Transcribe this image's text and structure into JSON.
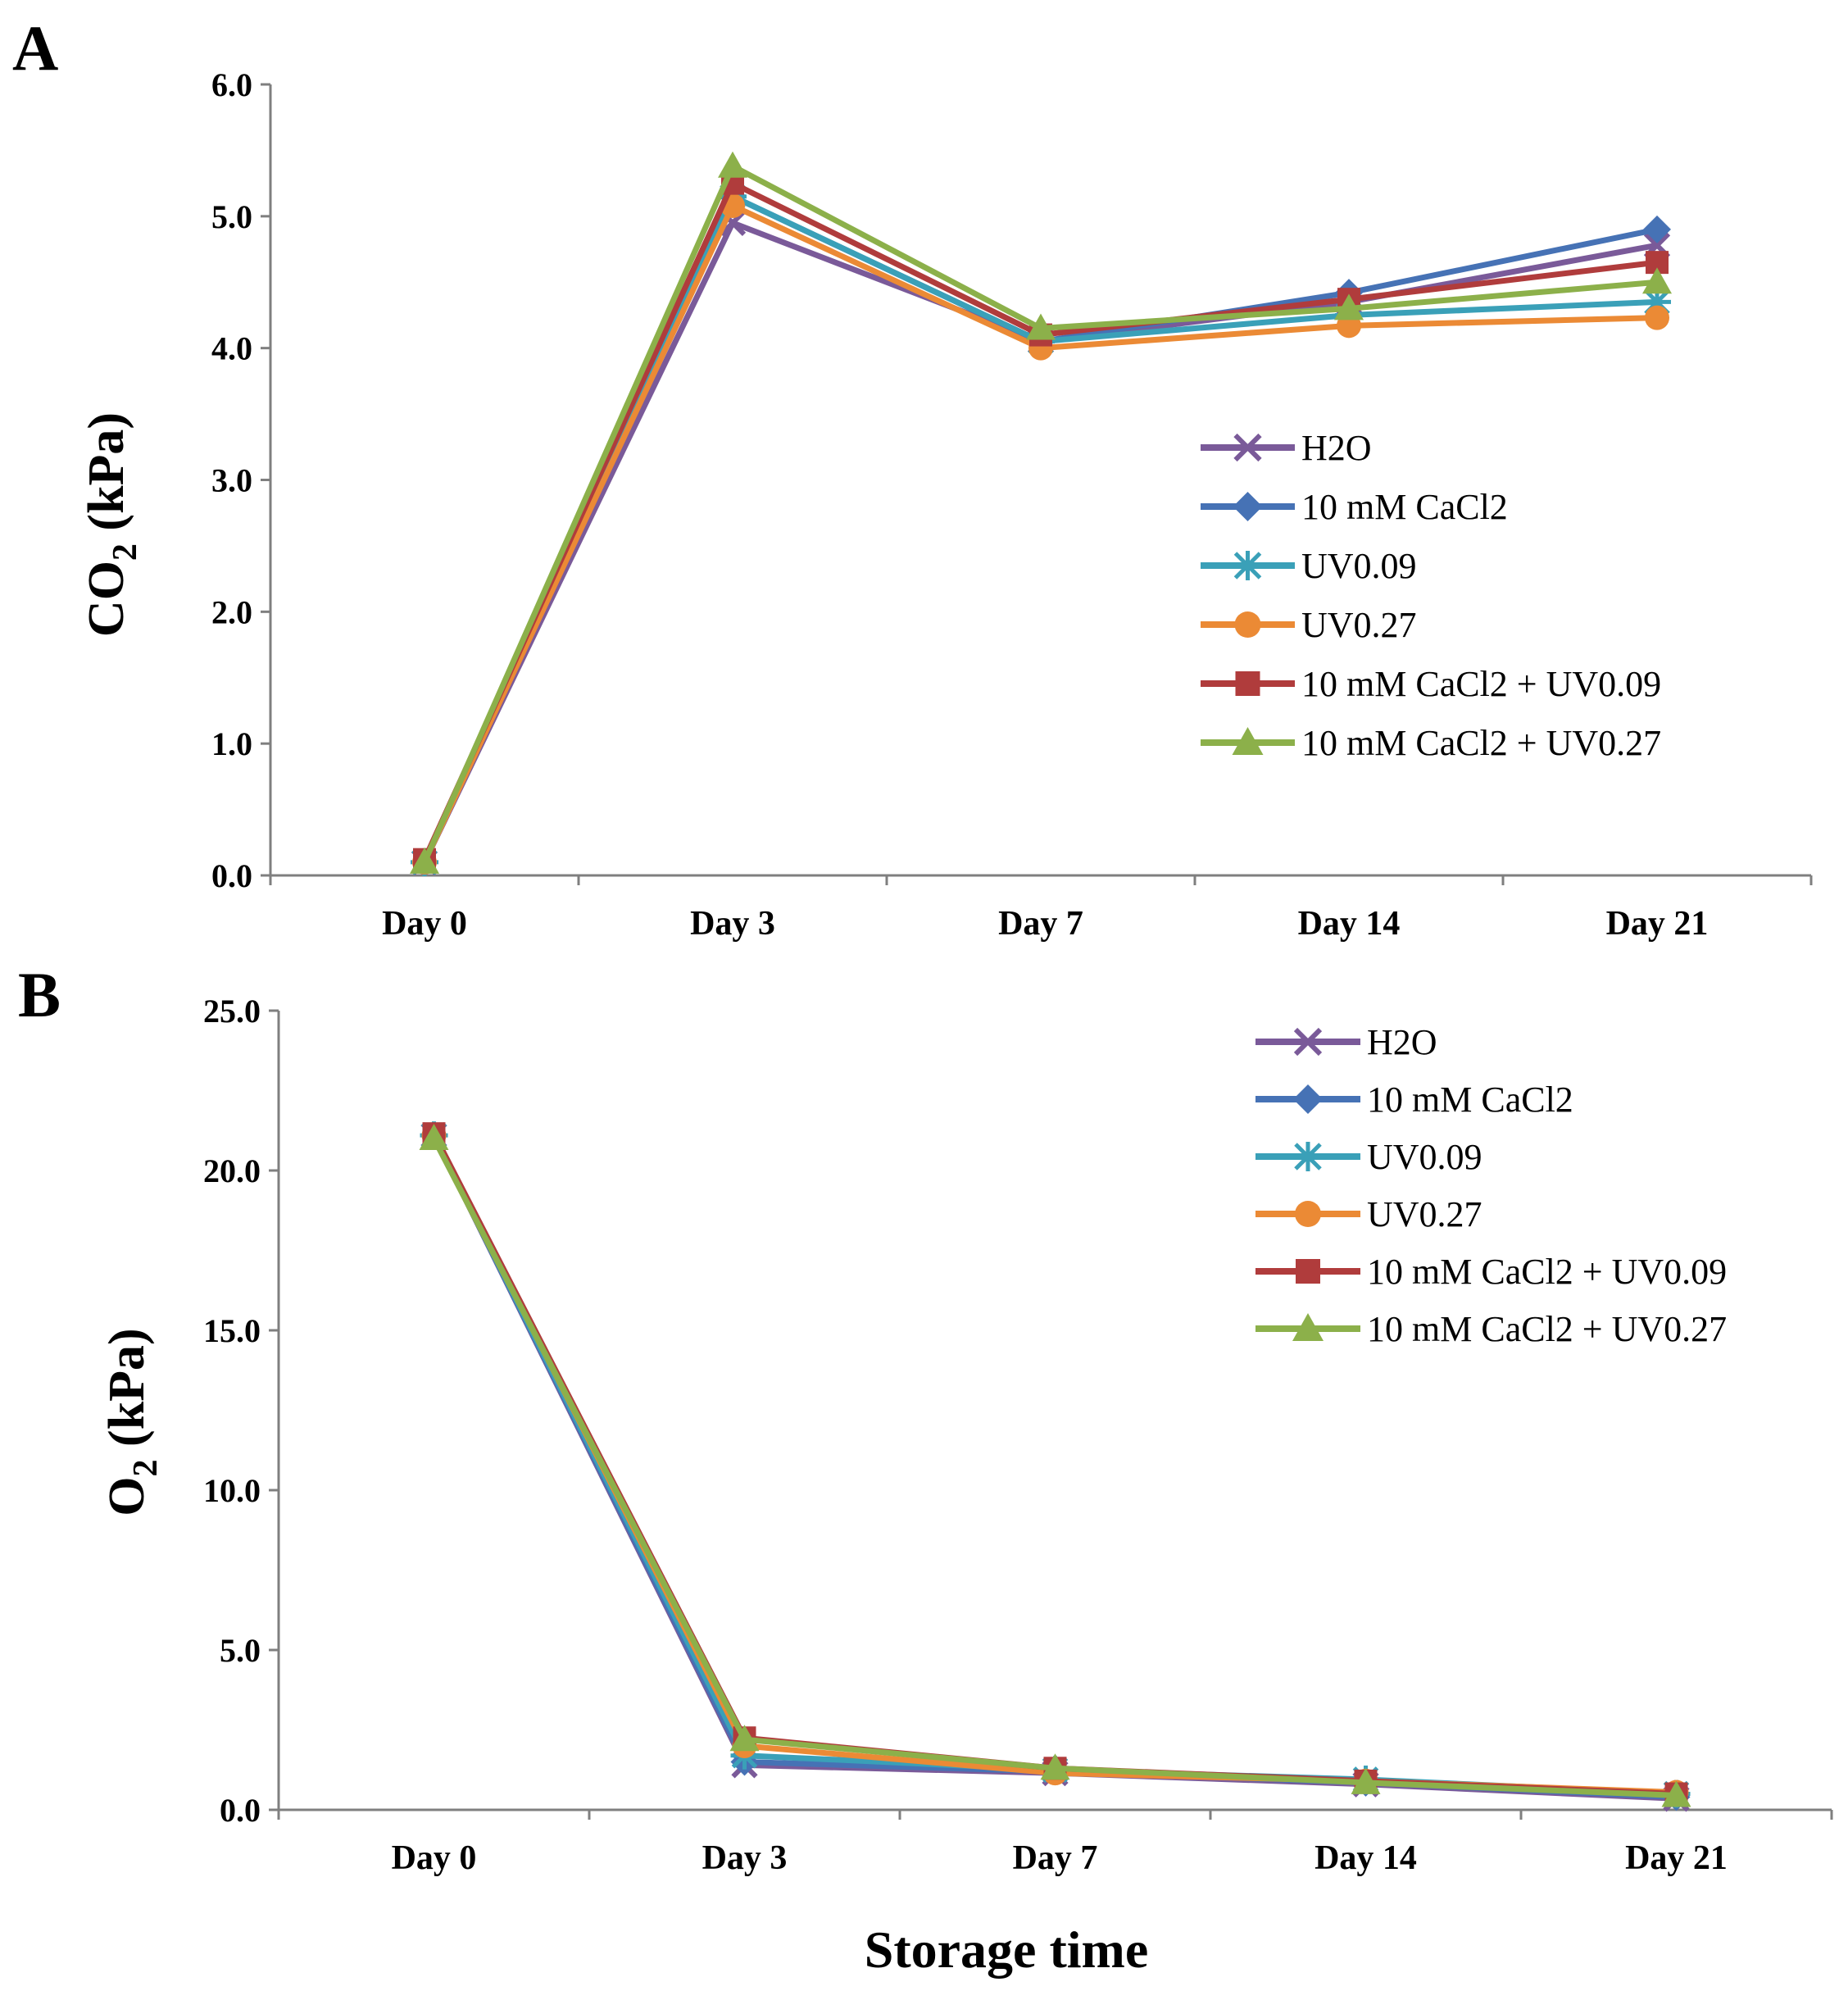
{
  "figure": {
    "xlabel": "Storage time"
  },
  "chart_data": [
    {
      "panel": "A",
      "type": "line",
      "ylabel_main": "CO",
      "ylabel_sub": "2",
      "ylabel_rest": " (kPa)",
      "ylim": [
        0,
        6
      ],
      "yticks": [
        0,
        1,
        2,
        3,
        4,
        5,
        6
      ],
      "ytick_labels": [
        "0.0",
        "1.0",
        "2.0",
        "3.0",
        "4.0",
        "5.0",
        "6.0"
      ],
      "categories": [
        "Day 0",
        "Day 3",
        "Day 7",
        "Day 14",
        "Day 21"
      ],
      "legend_position": "center-right",
      "series": [
        {
          "name": "H2O",
          "color": "#7a5a99",
          "marker": "x",
          "values": [
            0.1,
            4.95,
            4.05,
            4.35,
            4.78
          ]
        },
        {
          "name": "10 mM CaCl2",
          "color": "#4672b5",
          "marker": "diamond",
          "values": [
            0.1,
            5.15,
            4.05,
            4.42,
            4.9
          ]
        },
        {
          "name": "UV0.09",
          "color": "#3aa0b8",
          "marker": "asterisk",
          "values": [
            0.1,
            5.15,
            4.05,
            4.25,
            4.35
          ]
        },
        {
          "name": "UV0.27",
          "color": "#eb8a35",
          "marker": "circle",
          "values": [
            0.1,
            5.08,
            4.0,
            4.17,
            4.23
          ]
        },
        {
          "name": "10 mM CaCl2 + UV0.09",
          "color": "#b03c3c",
          "marker": "square",
          "values": [
            0.12,
            5.25,
            4.1,
            4.37,
            4.65
          ]
        },
        {
          "name": "10 mM CaCl2 + UV0.27",
          "color": "#8cb04a",
          "marker": "triangle",
          "values": [
            0.1,
            5.38,
            4.15,
            4.3,
            4.5
          ]
        }
      ]
    },
    {
      "panel": "B",
      "type": "line",
      "ylabel_main": "O",
      "ylabel_sub": "2",
      "ylabel_rest": " (kPa)",
      "ylim": [
        0,
        25
      ],
      "yticks": [
        0,
        5,
        10,
        15,
        20,
        25
      ],
      "ytick_labels": [
        "0.0",
        "5.0",
        "10.0",
        "15.0",
        "20.0",
        "25.0"
      ],
      "categories": [
        "Day 0",
        "Day 3",
        "Day 7",
        "Day 14",
        "Day 21"
      ],
      "legend_position": "top-right",
      "series": [
        {
          "name": "H2O",
          "color": "#7a5a99",
          "marker": "x",
          "values": [
            21.1,
            1.4,
            1.15,
            0.8,
            0.35
          ]
        },
        {
          "name": "10 mM CaCl2",
          "color": "#4672b5",
          "marker": "diamond",
          "values": [
            21.1,
            1.5,
            1.2,
            0.85,
            0.4
          ]
        },
        {
          "name": "UV0.09",
          "color": "#3aa0b8",
          "marker": "asterisk",
          "values": [
            21.1,
            1.7,
            1.25,
            0.95,
            0.5
          ]
        },
        {
          "name": "UV0.27",
          "color": "#eb8a35",
          "marker": "circle",
          "values": [
            21.1,
            2.0,
            1.15,
            0.9,
            0.55
          ]
        },
        {
          "name": "10 mM CaCl2 + UV0.09",
          "color": "#b03c3c",
          "marker": "square",
          "values": [
            21.15,
            2.25,
            1.3,
            0.9,
            0.5
          ]
        },
        {
          "name": "10 mM CaCl2 + UV0.27",
          "color": "#8cb04a",
          "marker": "triangle",
          "values": [
            21.0,
            2.2,
            1.3,
            0.85,
            0.45
          ]
        }
      ]
    }
  ]
}
